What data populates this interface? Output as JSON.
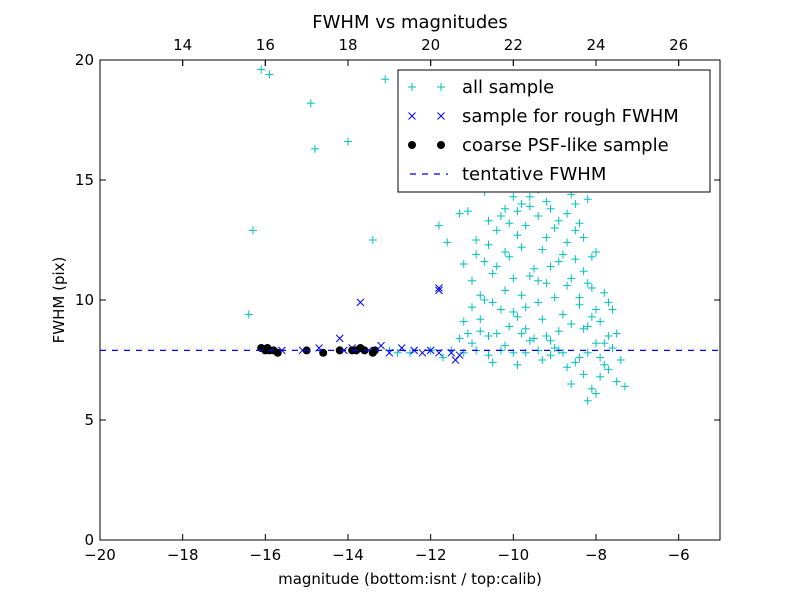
{
  "chart_data": {
    "type": "scatter",
    "title": "FWHM vs magnitudes",
    "xlabel": "magnitude (bottom:isnt / top:calib)",
    "ylabel": "FWHM (pix)",
    "xlim": [
      -20,
      -5
    ],
    "ylim": [
      0,
      20
    ],
    "x_ticks": [
      -20,
      -18,
      -16,
      -14,
      -12,
      -10,
      -8,
      -6
    ],
    "x_tick_labels": [
      "−20",
      "−18",
      "−16",
      "−14",
      "−12",
      "−10",
      "−8",
      "−6"
    ],
    "y_ticks": [
      0,
      5,
      10,
      15,
      20
    ],
    "y_tick_labels": [
      "0",
      "5",
      "10",
      "15",
      "20"
    ],
    "top_axis": {
      "ticks": [
        14,
        16,
        18,
        20,
        22,
        24,
        26
      ],
      "tick_labels": [
        "14",
        "16",
        "18",
        "20",
        "22",
        "24",
        "26"
      ],
      "offset": 32.0
    },
    "grid": false,
    "legend_position": "top-right",
    "colors": {
      "all": "#00bfbf",
      "rough": "#0000ff",
      "coarse": "#000000",
      "tentative": "#0000ff"
    },
    "tentative_fwhm": 7.9,
    "series": [
      {
        "name": "all sample",
        "marker": "plus",
        "points": [
          [
            -16.3,
            12.9
          ],
          [
            -16.4,
            9.4
          ],
          [
            -16.1,
            19.6
          ],
          [
            -15.9,
            19.4
          ],
          [
            -14.9,
            18.2
          ],
          [
            -14.8,
            16.3
          ],
          [
            -14.0,
            16.6
          ],
          [
            -13.4,
            12.5
          ],
          [
            -13.1,
            19.2
          ],
          [
            -12.2,
            19.3
          ],
          [
            -11.8,
            13.1
          ],
          [
            -11.6,
            12.4
          ],
          [
            -11.3,
            13.6
          ],
          [
            -11.1,
            13.7
          ],
          [
            -10.9,
            12.5
          ],
          [
            -10.7,
            14.5
          ],
          [
            -10.6,
            16.2
          ],
          [
            -10.4,
            15.6
          ],
          [
            -10.2,
            15.0
          ],
          [
            -10.0,
            17.4
          ],
          [
            -9.8,
            15.5
          ],
          [
            -9.6,
            16.0
          ],
          [
            -9.4,
            14.6
          ],
          [
            -9.2,
            17.0
          ],
          [
            -9.0,
            16.5
          ],
          [
            -8.8,
            15.0
          ],
          [
            -8.6,
            16.8
          ],
          [
            -8.4,
            15.9
          ],
          [
            -8.2,
            14.2
          ],
          [
            -11.2,
            11.5
          ],
          [
            -11.0,
            10.8
          ],
          [
            -10.9,
            11.9
          ],
          [
            -10.8,
            9.2
          ],
          [
            -10.7,
            10.0
          ],
          [
            -10.6,
            12.3
          ],
          [
            -10.5,
            11.1
          ],
          [
            -10.4,
            8.6
          ],
          [
            -10.3,
            13.5
          ],
          [
            -10.2,
            10.4
          ],
          [
            -10.1,
            11.8
          ],
          [
            -10.0,
            9.5
          ],
          [
            -9.9,
            12.7
          ],
          [
            -9.8,
            10.2
          ],
          [
            -9.7,
            8.8
          ],
          [
            -9.6,
            13.9
          ],
          [
            -9.5,
            11.3
          ],
          [
            -9.4,
            9.9
          ],
          [
            -9.3,
            12.1
          ],
          [
            -9.2,
            10.7
          ],
          [
            -9.1,
            8.3
          ],
          [
            -9.0,
            13.0
          ],
          [
            -8.9,
            11.6
          ],
          [
            -8.8,
            9.4
          ],
          [
            -8.7,
            12.4
          ],
          [
            -8.6,
            10.9
          ],
          [
            -8.5,
            14.0
          ],
          [
            -8.4,
            9.8
          ],
          [
            -8.3,
            11.2
          ],
          [
            -8.2,
            8.9
          ],
          [
            -8.1,
            10.5
          ],
          [
            -8.0,
            12.0
          ],
          [
            -7.9,
            9.1
          ],
          [
            -7.8,
            10.3
          ],
          [
            -7.7,
            8.5
          ],
          [
            -7.6,
            9.6
          ],
          [
            -8.5,
            7.4
          ],
          [
            -8.3,
            6.9
          ],
          [
            -8.1,
            6.3
          ],
          [
            -7.9,
            6.8
          ],
          [
            -7.7,
            7.1
          ],
          [
            -7.5,
            6.6
          ],
          [
            -7.3,
            6.4
          ],
          [
            -8.6,
            6.5
          ],
          [
            -8.4,
            7.6
          ],
          [
            -8.2,
            5.8
          ],
          [
            -8.0,
            6.1
          ],
          [
            -7.8,
            7.3
          ],
          [
            -11.5,
            7.9
          ],
          [
            -11.2,
            7.8
          ],
          [
            -10.9,
            7.9
          ],
          [
            -10.6,
            7.7
          ],
          [
            -10.3,
            7.9
          ],
          [
            -10.0,
            7.8
          ],
          [
            -9.7,
            7.8
          ],
          [
            -9.4,
            7.9
          ],
          [
            -9.1,
            7.7
          ],
          [
            -8.8,
            7.8
          ],
          [
            -11.3,
            8.4
          ],
          [
            -11.0,
            8.2
          ],
          [
            -10.8,
            8.7
          ],
          [
            -10.5,
            7.4
          ],
          [
            -10.2,
            8.1
          ],
          [
            -9.9,
            7.3
          ],
          [
            -9.6,
            8.3
          ],
          [
            -9.3,
            7.5
          ],
          [
            -9.0,
            8.0
          ],
          [
            -8.7,
            7.2
          ],
          [
            -12.0,
            7.9
          ],
          [
            -12.5,
            7.8
          ],
          [
            -13.0,
            7.9
          ],
          [
            -12.8,
            7.8
          ],
          [
            -11.7,
            7.6
          ],
          [
            -9.8,
            8.6
          ],
          [
            -9.2,
            8.5
          ],
          [
            -8.9,
            7.9
          ],
          [
            -8.2,
            7.8
          ],
          [
            -8.0,
            8.2
          ],
          [
            -7.9,
            7.6
          ],
          [
            -8.1,
            9.3
          ],
          [
            -8.3,
            8.8
          ],
          [
            -8.4,
            10.1
          ],
          [
            -8.5,
            11.7
          ],
          [
            -8.6,
            9.0
          ],
          [
            -8.7,
            10.6
          ],
          [
            -8.8,
            11.9
          ],
          [
            -8.9,
            8.7
          ],
          [
            -9.0,
            10.1
          ],
          [
            -9.1,
            11.4
          ],
          [
            -9.2,
            12.6
          ],
          [
            -9.3,
            9.2
          ],
          [
            -9.4,
            10.8
          ],
          [
            -9.5,
            8.4
          ],
          [
            -9.6,
            11.0
          ],
          [
            -9.7,
            9.7
          ],
          [
            -9.8,
            12.2
          ],
          [
            -9.9,
            9.3
          ],
          [
            -10.0,
            10.9
          ],
          [
            -10.1,
            8.9
          ],
          [
            -10.2,
            12.0
          ],
          [
            -10.3,
            9.6
          ],
          [
            -10.4,
            11.4
          ],
          [
            -10.5,
            9.9
          ],
          [
            -10.6,
            8.5
          ],
          [
            -10.7,
            11.6
          ],
          [
            -10.8,
            10.2
          ],
          [
            -11.0,
            9.7
          ],
          [
            -11.1,
            8.6
          ],
          [
            -11.2,
            9.1
          ],
          [
            -7.6,
            8.0
          ],
          [
            -7.4,
            7.5
          ],
          [
            -7.5,
            8.6
          ],
          [
            -7.7,
            9.9
          ],
          [
            -7.8,
            8.2
          ],
          [
            -8.0,
            9.6
          ],
          [
            -8.1,
            11.8
          ],
          [
            -8.2,
            10.7
          ],
          [
            -8.3,
            12.6
          ],
          [
            -8.4,
            13.2
          ],
          [
            -8.5,
            12.9
          ],
          [
            -8.6,
            14.4
          ],
          [
            -8.7,
            13.6
          ],
          [
            -8.8,
            14.8
          ],
          [
            -8.9,
            13.3
          ],
          [
            -9.0,
            14.9
          ],
          [
            -9.1,
            13.8
          ],
          [
            -9.2,
            14.1
          ],
          [
            -9.3,
            15.4
          ],
          [
            -9.4,
            13.5
          ],
          [
            -9.5,
            15.2
          ],
          [
            -9.6,
            14.3
          ],
          [
            -9.7,
            13.1
          ],
          [
            -9.8,
            14.0
          ],
          [
            -9.9,
            13.7
          ],
          [
            -10.0,
            14.3
          ],
          [
            -10.1,
            13.2
          ],
          [
            -10.2,
            13.8
          ],
          [
            -10.4,
            12.9
          ],
          [
            -10.6,
            13.3
          ]
        ]
      },
      {
        "name": "sample for rough FWHM",
        "marker": "x",
        "points": [
          [
            -13.7,
            9.9
          ],
          [
            -11.8,
            10.5
          ],
          [
            -11.8,
            10.4
          ],
          [
            -14.2,
            8.4
          ],
          [
            -14.7,
            8.0
          ],
          [
            -13.2,
            8.1
          ],
          [
            -13.5,
            7.9
          ],
          [
            -13.0,
            7.8
          ],
          [
            -12.7,
            8.0
          ],
          [
            -12.4,
            7.9
          ],
          [
            -12.2,
            7.8
          ],
          [
            -12.0,
            7.9
          ],
          [
            -11.8,
            7.8
          ],
          [
            -11.5,
            7.8
          ],
          [
            -11.4,
            7.5
          ],
          [
            -11.3,
            7.7
          ],
          [
            -13.9,
            8.0
          ],
          [
            -14.1,
            7.9
          ],
          [
            -15.6,
            7.9
          ],
          [
            -16.0,
            8.0
          ],
          [
            -15.1,
            7.9
          ]
        ]
      },
      {
        "name": "coarse PSF-like sample",
        "marker": "dot",
        "points": [
          [
            -16.1,
            8.0
          ],
          [
            -16.0,
            7.9
          ],
          [
            -15.95,
            8.0
          ],
          [
            -15.9,
            7.9
          ],
          [
            -15.8,
            7.9
          ],
          [
            -15.7,
            7.8
          ],
          [
            -15.0,
            7.9
          ],
          [
            -14.6,
            7.8
          ],
          [
            -14.2,
            7.9
          ],
          [
            -13.9,
            7.9
          ],
          [
            -13.8,
            7.9
          ],
          [
            -13.7,
            8.0
          ],
          [
            -13.6,
            7.9
          ],
          [
            -13.4,
            7.8
          ],
          [
            -13.35,
            7.9
          ]
        ]
      },
      {
        "name": "tentative FWHM",
        "marker": "dashed-line"
      }
    ]
  }
}
